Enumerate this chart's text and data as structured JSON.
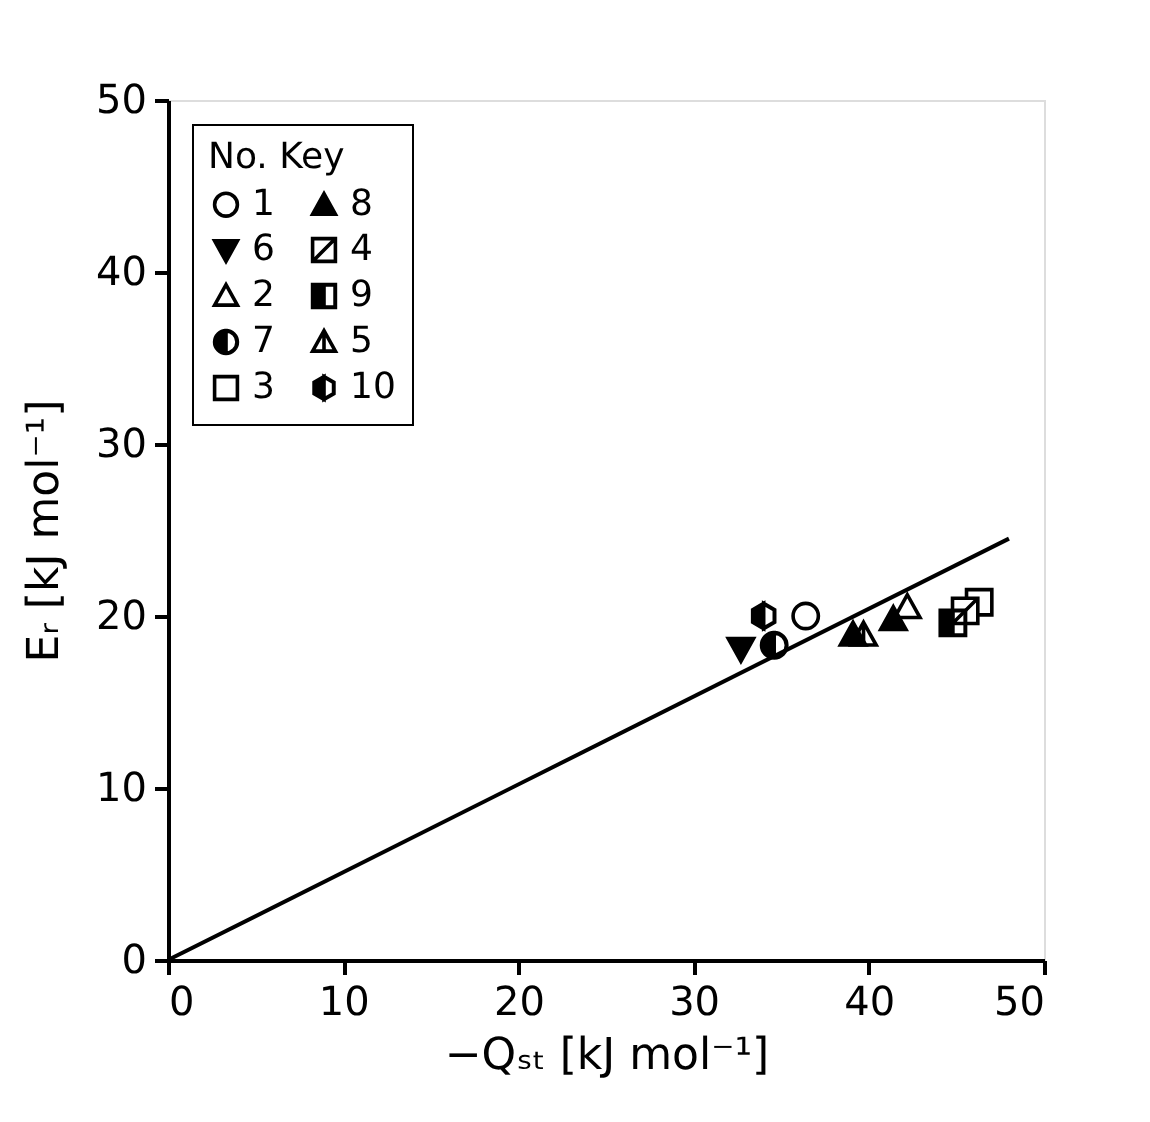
{
  "chart_data": {
    "type": "scatter",
    "xlabel": "−Qₛₜ  [kJ mol⁻¹]",
    "ylabel": "Eᵣ  [kJ mol⁻¹]",
    "legend_title": "No. Key",
    "legend": "top left",
    "grid": false,
    "xlim": [
      0,
      50
    ],
    "ylim": [
      0,
      50
    ],
    "xticks": [
      0,
      10,
      20,
      30,
      40,
      50
    ],
    "yticks": [
      0,
      10,
      20,
      30,
      40,
      50
    ],
    "series": [
      {
        "name": "1",
        "color": "#000000",
        "marker": "circle",
        "x": [
          36.4
        ],
        "values": [
          20.0
        ]
      },
      {
        "name": "2",
        "color": "#000000",
        "marker": "triangle",
        "x": [
          42.2
        ],
        "values": [
          20.5
        ]
      },
      {
        "name": "3",
        "color": "#000000",
        "marker": "square",
        "x": [
          46.3
        ],
        "values": [
          20.8
        ]
      },
      {
        "name": "4",
        "color": "#000000",
        "x": [
          45.5
        ],
        "values": [
          20.3
        ]
      },
      {
        "name": "5",
        "color": "#000000",
        "x": [
          39.7
        ],
        "values": [
          18.9
        ]
      },
      {
        "name": "6",
        "color": "#000000",
        "marker": "triangle",
        "x": [
          32.7
        ],
        "values": [
          18.1
        ]
      },
      {
        "name": "7",
        "color": "#000000",
        "marker": "circle",
        "x": [
          34.6
        ],
        "values": [
          18.3
        ]
      },
      {
        "name": "8",
        "color": "#000000",
        "marker": "triangle",
        "x": [
          39.1,
          41.4
        ],
        "values": [
          18.9,
          19.8
        ]
      },
      {
        "name": "9",
        "color": "#000000",
        "x": [
          44.8
        ],
        "values": [
          19.6
        ]
      },
      {
        "name": "10",
        "color": "#000000",
        "x": [
          34.0
        ],
        "values": [
          20.0
        ]
      },
      {
        "type": "line",
        "color": "#000000",
        "marker": "none",
        "x": [
          0,
          48
        ],
        "values": [
          0,
          24.5
        ]
      }
    ]
  }
}
